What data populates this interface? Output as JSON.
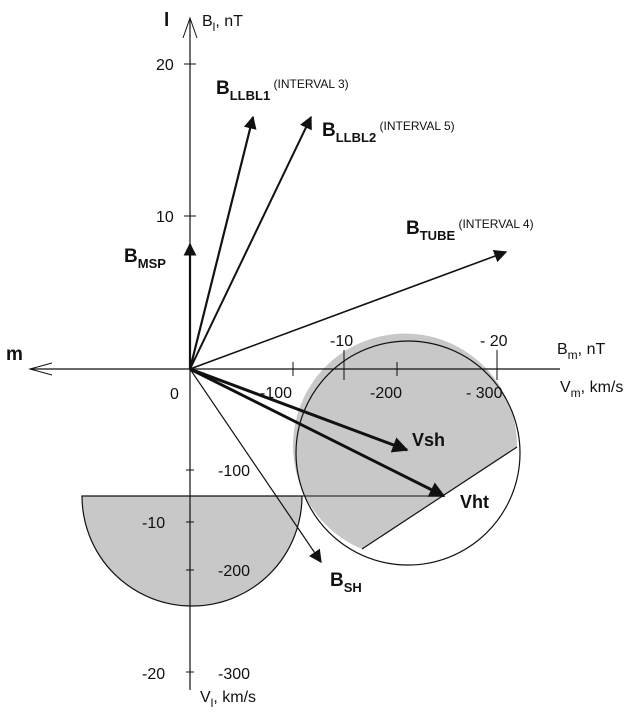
{
  "diagram": {
    "axes": {
      "l_axis_letter": "l",
      "bl_axis": {
        "name": "B",
        "sub": "l",
        "unit": ", nT"
      },
      "m_axis_letter": "m",
      "bm_axis": {
        "name": "B",
        "sub": "m",
        "unit": ", nT"
      },
      "vm_axis": {
        "name": "V",
        "sub": "m",
        "unit": ", km/s"
      },
      "vl_axis": {
        "name": "V",
        "sub": "l",
        "unit": ", km/s"
      },
      "origin_label": "0"
    },
    "ticks": {
      "bl": [
        "20",
        "10"
      ],
      "bm": [
        "-10",
        "- 20"
      ],
      "vm": [
        "-100",
        "-200",
        "- 300"
      ],
      "vl": [
        "-100",
        "-200",
        "-300"
      ],
      "bl_negative": [
        "-10",
        "-20"
      ]
    },
    "vectors": {
      "b_llbl1": {
        "name": "B",
        "sub": "LLBL1",
        "note": " (INTERVAL 3)"
      },
      "b_llbl2": {
        "name": "B",
        "sub": "LLBL2",
        "note": " (INTERVAL 5)"
      },
      "b_tube": {
        "name": "B",
        "sub": "TUBE",
        "note": " (INTERVAL 4)"
      },
      "b_msp": {
        "name": "B",
        "sub": "MSP"
      },
      "b_sh": {
        "name": "B",
        "sub": "SH"
      },
      "vsh": {
        "label": "Vsh"
      },
      "vht": {
        "label": "Vht"
      }
    },
    "colors": {
      "region_fill": "#c8c8c8",
      "stroke": "#111111",
      "background": "#ffffff"
    }
  }
}
